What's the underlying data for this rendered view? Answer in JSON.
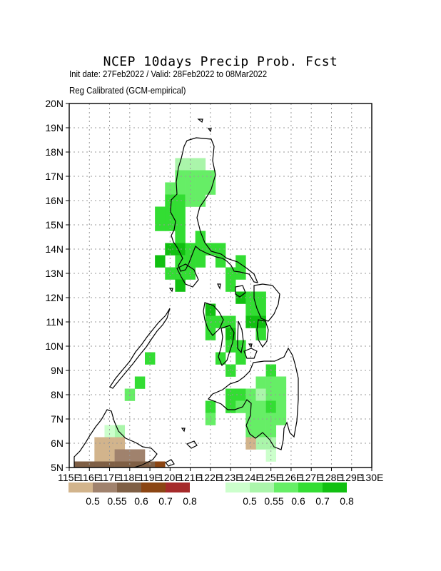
{
  "title": "NCEP 10days Precip Prob. Fcst",
  "subtitle_dates": "Init date: 27Feb2022 / Valid: 28Feb2022 to 08Mar2022",
  "subtitle_method": "Reg Calibrated (GCM-empirical)",
  "chart_data": {
    "type": "heatmap",
    "lon_range": [
      115,
      130
    ],
    "lat_range": [
      5,
      20
    ],
    "grid_resolution_deg": 0.5,
    "x_tick_labels": [
      "115E",
      "116E",
      "117E",
      "118E",
      "119E",
      "120E",
      "121E",
      "122E",
      "123E",
      "124E",
      "125E",
      "126E",
      "127E",
      "128E",
      "129E",
      "130E"
    ],
    "y_tick_labels": [
      "5N",
      "6N",
      "7N",
      "8N",
      "9N",
      "10N",
      "11N",
      "12N",
      "13N",
      "14N",
      "15N",
      "16N",
      "17N",
      "18N",
      "19N",
      "20N"
    ],
    "grid": "dotted",
    "dry_legend": {
      "colors": [
        "#d2b48c",
        "#a0826d",
        "#7f5f45",
        "#8b4513",
        "#a52a2a"
      ],
      "labels": [
        "0.5",
        "0.55",
        "0.6",
        "0.7",
        "0.8"
      ]
    },
    "wet_legend": {
      "colors": [
        "#ccffcc",
        "#aaf5aa",
        "#66ee66",
        "#33dd33",
        "#11c011"
      ],
      "labels": [
        "0.5",
        "0.55",
        "0.6",
        "0.7",
        "0.8"
      ]
    },
    "wet_cells": [
      {
        "lon": 120.5,
        "lat": 17.5,
        "level": 2
      },
      {
        "lon": 121.0,
        "lat": 17.5,
        "level": 2
      },
      {
        "lon": 121.5,
        "lat": 17.5,
        "level": 2
      },
      {
        "lon": 120.5,
        "lat": 17.0,
        "level": 3
      },
      {
        "lon": 121.0,
        "lat": 17.0,
        "level": 3
      },
      {
        "lon": 121.5,
        "lat": 17.0,
        "level": 3
      },
      {
        "lon": 122.0,
        "lat": 17.0,
        "level": 3
      },
      {
        "lon": 120.0,
        "lat": 16.5,
        "level": 3
      },
      {
        "lon": 120.5,
        "lat": 16.5,
        "level": 3
      },
      {
        "lon": 121.0,
        "lat": 16.5,
        "level": 3
      },
      {
        "lon": 121.5,
        "lat": 16.5,
        "level": 3
      },
      {
        "lon": 122.0,
        "lat": 16.5,
        "level": 3
      },
      {
        "lon": 120.0,
        "lat": 16.0,
        "level": 4
      },
      {
        "lon": 120.5,
        "lat": 16.0,
        "level": 4
      },
      {
        "lon": 121.0,
        "lat": 16.0,
        "level": 3
      },
      {
        "lon": 121.5,
        "lat": 16.0,
        "level": 3
      },
      {
        "lon": 119.5,
        "lat": 15.5,
        "level": 4
      },
      {
        "lon": 120.0,
        "lat": 15.5,
        "level": 4
      },
      {
        "lon": 120.5,
        "lat": 15.5,
        "level": 4
      },
      {
        "lon": 119.5,
        "lat": 15.0,
        "level": 4
      },
      {
        "lon": 120.0,
        "lat": 15.0,
        "level": 4
      },
      {
        "lon": 120.5,
        "lat": 15.0,
        "level": 4
      },
      {
        "lon": 120.5,
        "lat": 14.5,
        "level": 4
      },
      {
        "lon": 121.5,
        "lat": 14.5,
        "level": 4
      },
      {
        "lon": 120.0,
        "lat": 14.0,
        "level": 5
      },
      {
        "lon": 120.5,
        "lat": 14.0,
        "level": 5
      },
      {
        "lon": 121.0,
        "lat": 14.0,
        "level": 4
      },
      {
        "lon": 121.5,
        "lat": 14.0,
        "level": 4
      },
      {
        "lon": 122.0,
        "lat": 14.0,
        "level": 4
      },
      {
        "lon": 122.5,
        "lat": 14.0,
        "level": 4
      },
      {
        "lon": 119.5,
        "lat": 13.5,
        "level": 5
      },
      {
        "lon": 120.5,
        "lat": 13.5,
        "level": 4
      },
      {
        "lon": 121.0,
        "lat": 13.5,
        "level": 4
      },
      {
        "lon": 121.5,
        "lat": 13.5,
        "level": 4
      },
      {
        "lon": 122.5,
        "lat": 13.5,
        "level": 4
      },
      {
        "lon": 123.5,
        "lat": 13.5,
        "level": 4
      },
      {
        "lon": 120.0,
        "lat": 13.0,
        "level": 4
      },
      {
        "lon": 120.5,
        "lat": 13.0,
        "level": 4
      },
      {
        "lon": 121.0,
        "lat": 13.0,
        "level": 4
      },
      {
        "lon": 123.0,
        "lat": 13.0,
        "level": 4
      },
      {
        "lon": 123.5,
        "lat": 13.0,
        "level": 4
      },
      {
        "lon": 120.5,
        "lat": 12.5,
        "level": 5
      },
      {
        "lon": 123.0,
        "lat": 12.5,
        "level": 4
      },
      {
        "lon": 123.5,
        "lat": 12.0,
        "level": 5
      },
      {
        "lon": 124.0,
        "lat": 12.0,
        "level": 4
      },
      {
        "lon": 124.5,
        "lat": 12.0,
        "level": 4
      },
      {
        "lon": 122.0,
        "lat": 11.5,
        "level": 5
      },
      {
        "lon": 124.0,
        "lat": 11.5,
        "level": 4
      },
      {
        "lon": 124.5,
        "lat": 11.5,
        "level": 4
      },
      {
        "lon": 122.0,
        "lat": 11.0,
        "level": 4
      },
      {
        "lon": 122.5,
        "lat": 11.0,
        "level": 4
      },
      {
        "lon": 123.0,
        "lat": 11.0,
        "level": 4
      },
      {
        "lon": 124.0,
        "lat": 11.0,
        "level": 5
      },
      {
        "lon": 124.5,
        "lat": 11.0,
        "level": 5
      },
      {
        "lon": 122.0,
        "lat": 10.5,
        "level": 4
      },
      {
        "lon": 123.0,
        "lat": 10.5,
        "level": 5
      },
      {
        "lon": 124.5,
        "lat": 10.5,
        "level": 4
      },
      {
        "lon": 123.0,
        "lat": 10.0,
        "level": 4
      },
      {
        "lon": 123.5,
        "lat": 10.0,
        "level": 4
      },
      {
        "lon": 122.5,
        "lat": 9.5,
        "level": 4
      },
      {
        "lon": 123.5,
        "lat": 9.5,
        "level": 4
      },
      {
        "lon": 123.0,
        "lat": 9.0,
        "level": 4
      },
      {
        "lon": 125.0,
        "lat": 9.0,
        "level": 4
      },
      {
        "lon": 124.5,
        "lat": 8.5,
        "level": 3
      },
      {
        "lon": 125.0,
        "lat": 8.5,
        "level": 3
      },
      {
        "lon": 125.5,
        "lat": 8.5,
        "level": 3
      },
      {
        "lon": 123.0,
        "lat": 8.0,
        "level": 4
      },
      {
        "lon": 123.5,
        "lat": 8.0,
        "level": 4
      },
      {
        "lon": 124.0,
        "lat": 8.0,
        "level": 3
      },
      {
        "lon": 124.5,
        "lat": 8.0,
        "level": 2
      },
      {
        "lon": 125.0,
        "lat": 8.0,
        "level": 3
      },
      {
        "lon": 125.5,
        "lat": 8.0,
        "level": 3
      },
      {
        "lon": 122.0,
        "lat": 7.5,
        "level": 4
      },
      {
        "lon": 123.0,
        "lat": 7.5,
        "level": 4
      },
      {
        "lon": 123.5,
        "lat": 7.5,
        "level": 3
      },
      {
        "lon": 124.0,
        "lat": 7.5,
        "level": 3
      },
      {
        "lon": 124.5,
        "lat": 7.5,
        "level": 3
      },
      {
        "lon": 125.0,
        "lat": 7.5,
        "level": 4
      },
      {
        "lon": 125.5,
        "lat": 7.5,
        "level": 3
      },
      {
        "lon": 122.0,
        "lat": 7.0,
        "level": 3
      },
      {
        "lon": 124.0,
        "lat": 7.0,
        "level": 3
      },
      {
        "lon": 124.5,
        "lat": 7.0,
        "level": 3
      },
      {
        "lon": 125.0,
        "lat": 7.0,
        "level": 3
      },
      {
        "lon": 125.5,
        "lat": 7.0,
        "level": 3
      },
      {
        "lon": 124.0,
        "lat": 6.5,
        "level": 3
      },
      {
        "lon": 124.5,
        "lat": 6.5,
        "level": 3
      },
      {
        "lon": 125.0,
        "lat": 6.5,
        "level": 3
      },
      {
        "lon": 124.5,
        "lat": 6.0,
        "level": 2
      },
      {
        "lon": 125.0,
        "lat": 6.0,
        "level": 2
      },
      {
        "lon": 125.0,
        "lat": 5.5,
        "level": 1
      },
      {
        "lon": 119.0,
        "lat": 9.5,
        "level": 4
      },
      {
        "lon": 118.5,
        "lat": 8.5,
        "level": 4
      },
      {
        "lon": 118.0,
        "lat": 8.0,
        "level": 3
      },
      {
        "lon": 117.5,
        "lat": 6.5,
        "level": 2
      },
      {
        "lon": 117.0,
        "lat": 6.5,
        "level": 1
      }
    ],
    "dry_cells": [
      {
        "lon": 116.5,
        "lat": 6.0,
        "level": 1
      },
      {
        "lon": 117.0,
        "lat": 6.0,
        "level": 1
      },
      {
        "lon": 117.5,
        "lat": 6.0,
        "level": 1
      },
      {
        "lon": 116.5,
        "lat": 5.5,
        "level": 1
      },
      {
        "lon": 117.0,
        "lat": 5.5,
        "level": 1
      },
      {
        "lon": 117.5,
        "lat": 5.5,
        "level": 2
      },
      {
        "lon": 118.0,
        "lat": 5.5,
        "level": 2
      },
      {
        "lon": 118.5,
        "lat": 5.5,
        "level": 2
      },
      {
        "lon": 115.5,
        "lat": 5.0,
        "level": 3
      },
      {
        "lon": 116.0,
        "lat": 5.0,
        "level": 3
      },
      {
        "lon": 116.5,
        "lat": 5.0,
        "level": 3
      },
      {
        "lon": 117.0,
        "lat": 5.0,
        "level": 3
      },
      {
        "lon": 117.5,
        "lat": 5.0,
        "level": 3
      },
      {
        "lon": 118.0,
        "lat": 5.0,
        "level": 3
      },
      {
        "lon": 118.5,
        "lat": 5.0,
        "level": 3
      },
      {
        "lon": 119.0,
        "lat": 5.0,
        "level": 3
      },
      {
        "lon": 119.5,
        "lat": 5.0,
        "level": 4
      },
      {
        "lon": 124.0,
        "lat": 6.0,
        "level": 1
      }
    ]
  }
}
